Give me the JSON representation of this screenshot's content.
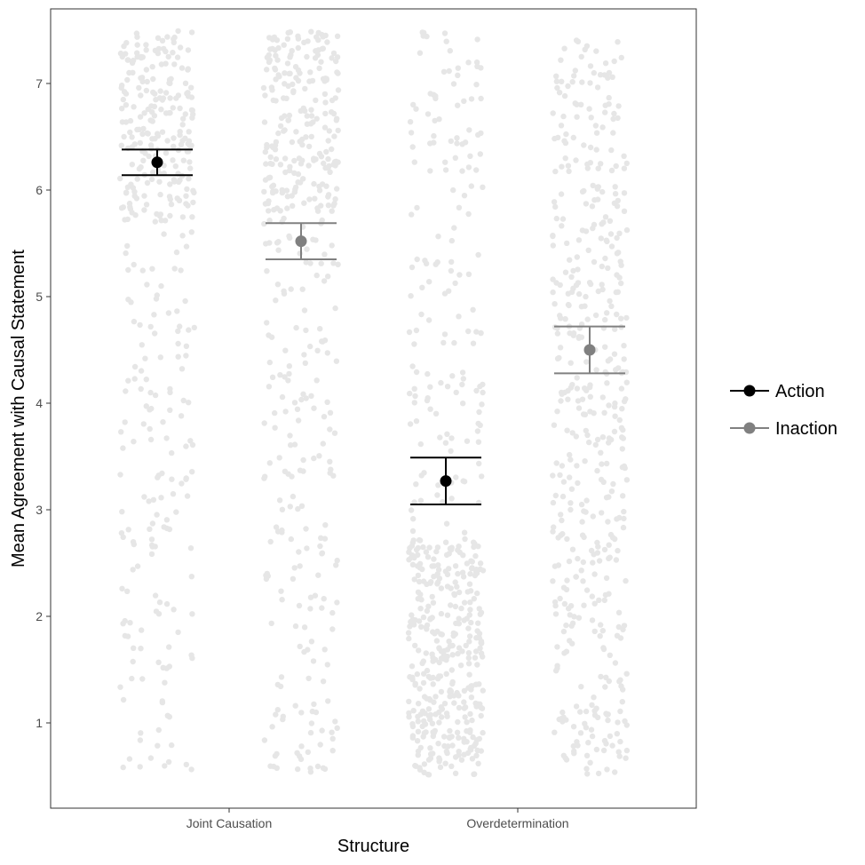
{
  "chart_data": {
    "type": "scatter",
    "xlabel": "Structure",
    "ylabel": "Mean Agreement with Causal Statement",
    "categories": [
      "Joint Causation",
      "Overdetermination"
    ],
    "ylim": [
      0.2,
      7.7
    ],
    "yticks": [
      1,
      2,
      3,
      4,
      5,
      6,
      7
    ],
    "grid": false,
    "legend_position": "right",
    "series": [
      {
        "name": "Action",
        "color": "#000000",
        "means": [
          6.26,
          3.27
        ],
        "ci_lower": [
          6.14,
          3.05
        ],
        "ci_upper": [
          6.38,
          3.49
        ]
      },
      {
        "name": "Inaction",
        "color": "#808080",
        "means": [
          5.52,
          4.5
        ],
        "ci_lower": [
          5.35,
          4.28
        ],
        "ci_upper": [
          5.69,
          4.72
        ]
      }
    ],
    "raw_points_color": "#e6e6e6",
    "raw_points_range": [
      0.5,
      7.5
    ]
  }
}
